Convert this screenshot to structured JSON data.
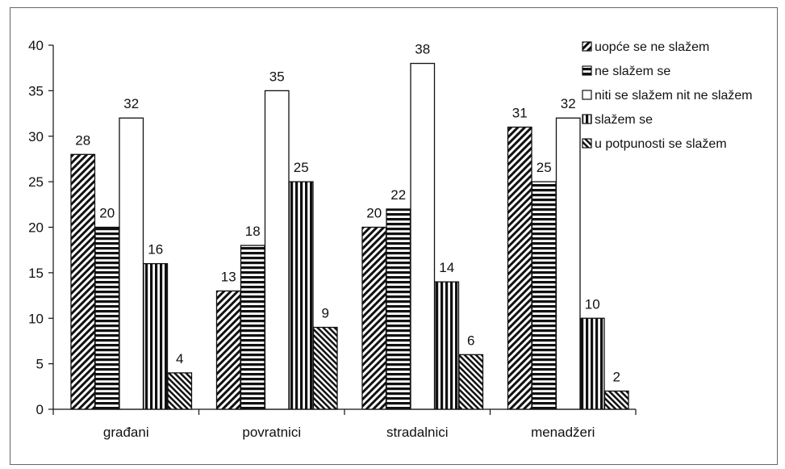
{
  "chart_data": {
    "type": "bar",
    "categories": [
      "građani",
      "povratnici",
      "stradalnici",
      "menadžeri"
    ],
    "series": [
      {
        "name": "uopće se ne slažem",
        "values": [
          28,
          13,
          20,
          31
        ],
        "pattern": "diag-right"
      },
      {
        "name": "ne slažem se",
        "values": [
          20,
          18,
          22,
          25
        ],
        "pattern": "horizontal"
      },
      {
        "name": "niti se slažem nit ne slažem",
        "values": [
          32,
          35,
          38,
          32
        ],
        "pattern": "white"
      },
      {
        "name": "slažem se",
        "values": [
          16,
          25,
          14,
          10
        ],
        "pattern": "vertical"
      },
      {
        "name": "u potpunosti se slažem",
        "values": [
          4,
          9,
          6,
          2
        ],
        "pattern": "diag-left"
      }
    ],
    "yticks": [
      0,
      5,
      10,
      15,
      20,
      25,
      30,
      35,
      40
    ],
    "ylim": [
      0,
      40
    ],
    "grid": false,
    "legend_position": "top-right",
    "colors": {
      "ink": "#111111",
      "background": "#ffffff"
    }
  }
}
